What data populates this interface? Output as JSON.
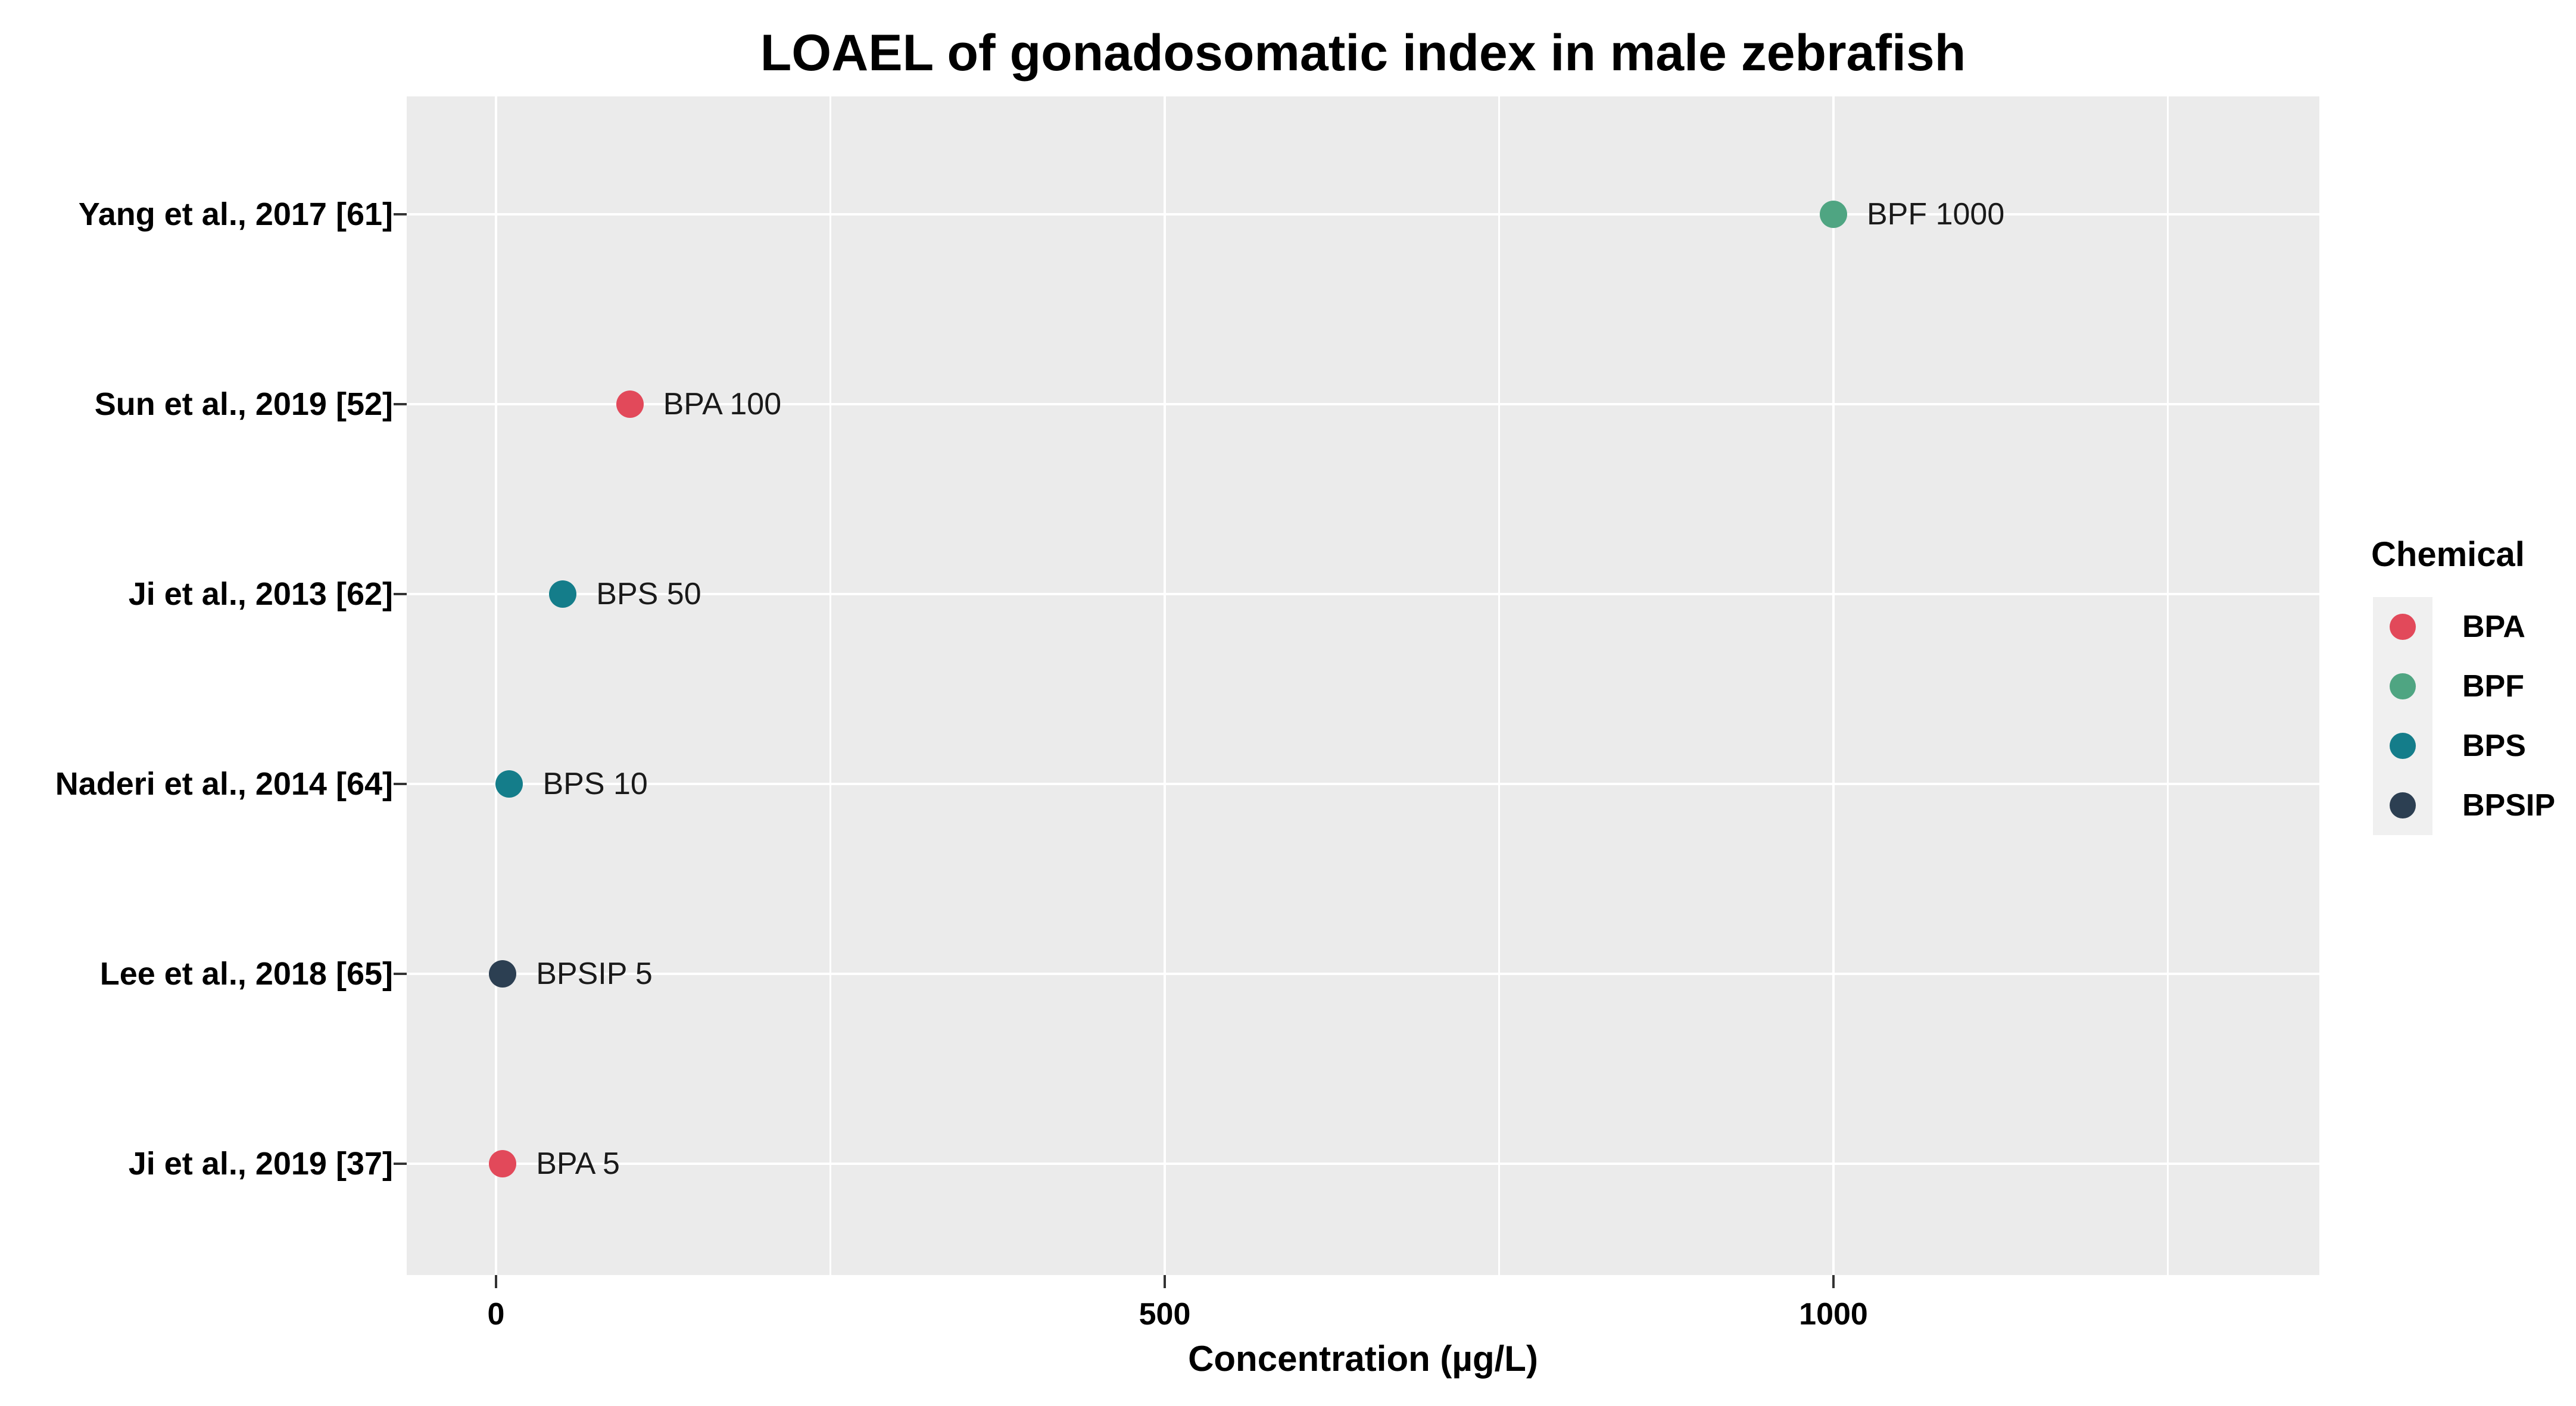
{
  "title": "LOAEL of gonadosomatic index in male zebrafish",
  "x_axis": {
    "title": "Concentration (µg/L)",
    "tick_labels": [
      "0",
      "500",
      "1000"
    ]
  },
  "legend": {
    "title": "Chemical",
    "entries": [
      {
        "label": "BPA",
        "color": "#E2495A"
      },
      {
        "label": "BPF",
        "color": "#4FA582"
      },
      {
        "label": "BPS",
        "color": "#147D8A"
      },
      {
        "label": "BPSIP",
        "color": "#2C3F52"
      }
    ]
  },
  "chart_data": {
    "type": "scatter",
    "title": "LOAEL of gonadosomatic index in male zebrafish",
    "xlabel": "Concentration (µg/L)",
    "ylabel": "",
    "xlim": [
      -67,
      1363
    ],
    "x_major_ticks": [
      0,
      500,
      1000
    ],
    "x_minor_gridlines": [
      250,
      750,
      1250
    ],
    "grid": "white major/minor vertical lines and white horizontal category lines on gray panel",
    "legend_position": "right",
    "legend_title": "Chemical",
    "categories": [
      "Yang et al., 2017 [61]",
      "Sun et al., 2019 [52]",
      "Ji et al., 2013 [62]",
      "Naderi et al., 2014 [64]",
      "Lee et al., 2018 [65]",
      "Ji et al., 2019 [37]"
    ],
    "points": [
      {
        "study": "Yang et al., 2017 [61]",
        "chemical": "BPF",
        "concentration": 1000,
        "label": "BPF 1000"
      },
      {
        "study": "Sun et al., 2019 [52]",
        "chemical": "BPA",
        "concentration": 100,
        "label": "BPA 100"
      },
      {
        "study": "Ji et al., 2013 [62]",
        "chemical": "BPS",
        "concentration": 50,
        "label": "BPS 50"
      },
      {
        "study": "Naderi et al., 2014 [64]",
        "chemical": "BPS",
        "concentration": 10,
        "label": "BPS 10"
      },
      {
        "study": "Lee et al., 2018 [65]",
        "chemical": "BPSIP",
        "concentration": 5,
        "label": "BPSIP 5"
      },
      {
        "study": "Ji et al., 2019 [37]",
        "chemical": "BPA",
        "concentration": 5,
        "label": "BPA 5"
      }
    ],
    "chemical_colors": {
      "BPA": "#E2495A",
      "BPF": "#4FA582",
      "BPS": "#147D8A",
      "BPSIP": "#2C3F52"
    }
  },
  "colors": {
    "background": "#FFFFFF",
    "panel_background": "#EBEBEB",
    "gridline": "#FFFFFF",
    "legend_key_background": "#F0F0F0",
    "axis_text": "#000000",
    "point_label_text": "#1A1A1A",
    "tick_mark": "#333333"
  }
}
